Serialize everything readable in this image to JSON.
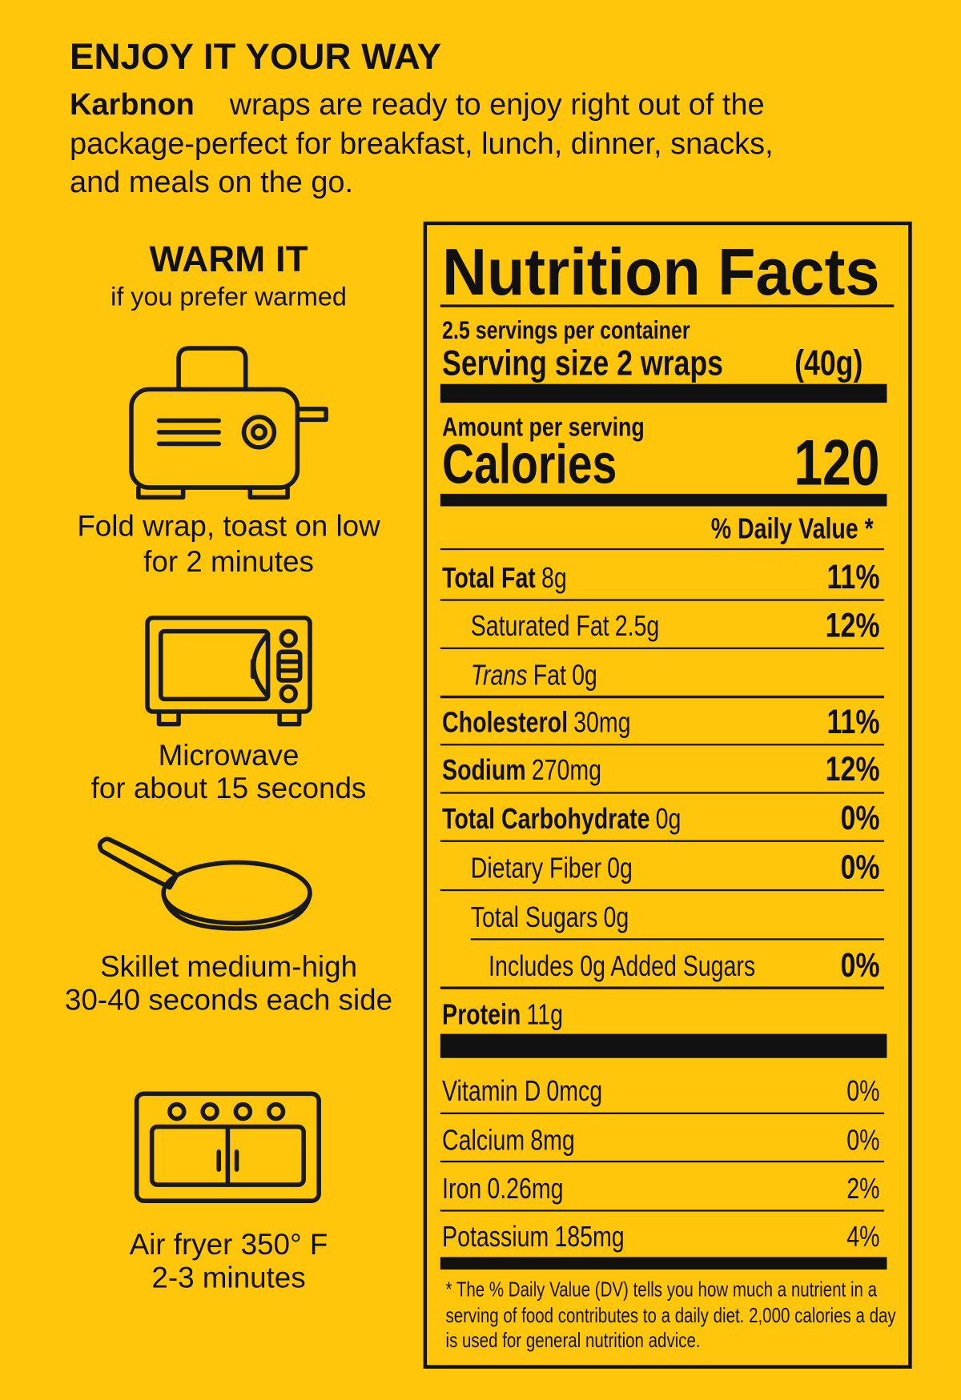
{
  "header": {
    "title": "ENJOY IT YOUR WAY",
    "brand": "Karbnon",
    "lines": [
      "wraps are ready to enjoy right out of the",
      "package-perfect for breakfast, lunch, dinner, snacks,",
      "and meals on the go."
    ]
  },
  "warm": {
    "title": "WARM IT",
    "subtitle": "if you prefer warmed",
    "steps": [
      {
        "lines": [
          "Fold wrap, toast on low",
          "for 2 minutes"
        ]
      },
      {
        "lines": [
          "Microwave",
          "for about 15 seconds"
        ]
      },
      {
        "lines": [
          "Skillet medium-high",
          "30-40 seconds each side"
        ]
      },
      {
        "lines": [
          "Air fryer 350° F",
          "2-3 minutes"
        ]
      }
    ]
  },
  "nutrition": {
    "title": "Nutrition Facts",
    "servings_per_container": "2.5 servings per container",
    "serving_size": "Serving size 2 wraps",
    "serving_weight": "(40g)",
    "amount_per_serving": "Amount per serving",
    "calories_label": "Calories",
    "calories": 120,
    "daily_value_header": "% Daily Value *",
    "nutrients": [
      {
        "name": "Total Fat",
        "amount": "8g",
        "dv": "11%"
      },
      {
        "name": "Saturated Fat",
        "amount": "2.5g",
        "dv": "12%"
      },
      {
        "name_italic": "Trans",
        "name": "Fat",
        "amount": "0g"
      },
      {
        "name": "Cholesterol",
        "amount": "30mg",
        "dv": "11%"
      },
      {
        "name": "Sodium",
        "amount": "270mg",
        "dv": "12%"
      },
      {
        "name": "Total Carbohydrate",
        "amount": "0g",
        "dv": "0%"
      },
      {
        "name": "Dietary Fiber",
        "amount": "0g",
        "dv": "0%"
      },
      {
        "name": "Total Sugars",
        "amount": "0g"
      },
      {
        "name": "Includes 0g Added Sugars",
        "dv": "0%"
      },
      {
        "name": "Protein",
        "amount": "11g"
      }
    ],
    "vitamins": [
      {
        "name": "Vitamin D",
        "amount": "0mcg",
        "dv": "0%"
      },
      {
        "name": "Calcium",
        "amount": "8mg",
        "dv": "0%"
      },
      {
        "name": "Iron",
        "amount": "0.26mg",
        "dv": "2%"
      },
      {
        "name": "Potassium",
        "amount": "185mg",
        "dv": "4%"
      }
    ],
    "footnote": [
      "* The % Daily Value (DV) tells you how much a nutrient in a",
      "serving of food contributes to a daily diet. 2,000 calories a day",
      "is used for general nutrition advice."
    ]
  }
}
